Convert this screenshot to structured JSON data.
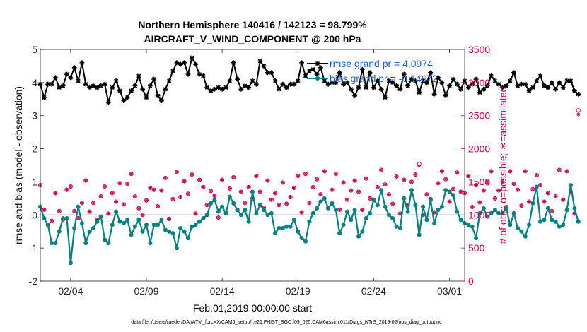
{
  "colors": {
    "rmse": "#000000",
    "bias": "#008080",
    "obs": "#cc0055",
    "legend_text": "#1f5fd6",
    "zero_line": "#aaaaaa"
  },
  "chart_data": {
    "type": "line",
    "title_line1": "Northern Hemisphere 140416 / 142123 = 98.799%",
    "title_line2": "AIRCRAFT_V_WIND_COMPONENT @ 200 hPa",
    "xlabel": "Feb.01,2019 00:00:00 start",
    "ylabel_left": "rmse and bias (model - observation)",
    "ylabel_right": "# of obs: o=possible; ∗=assimilated",
    "footnote": "data file: /Users/raeder/DAI/ATM_forcXX/CAM6_setup/f.e21.FHIST_BGC.f09_025.CAM6assim.011/Diags_NTrS_2019-02/obs_diag_output.nc",
    "xlim": [
      1,
      29
    ],
    "ylim_left": [
      -2,
      5
    ],
    "ylim_right": [
      0,
      3500
    ],
    "x_ticks": [
      3,
      8,
      13,
      18,
      23,
      28
    ],
    "x_tick_labels": [
      "02/04",
      "02/09",
      "02/14",
      "02/19",
      "02/24",
      "03/01"
    ],
    "y_ticks_left": [
      -2,
      -1,
      0,
      1,
      2,
      3,
      4,
      5
    ],
    "y_tick_labels_left": [
      "-2",
      "-1",
      "0",
      "1",
      "2",
      "3",
      "4",
      "5"
    ],
    "y_ticks_right": [
      0,
      500,
      1000,
      1500,
      2000,
      2500,
      3000,
      3500
    ],
    "y_tick_labels_right": [
      "0",
      "500",
      "1000",
      "1500",
      "2000",
      "2500",
      "3000",
      "3500"
    ],
    "legend": [
      {
        "name": "rmse grand pr = 4.0974"
      },
      {
        "name": "bias grand pr = -0.14672"
      }
    ],
    "series": [
      {
        "name": "rmse",
        "axis": "left",
        "x_start": 1.0,
        "x_step": 0.25,
        "values": [
          3.95,
          3.55,
          3.95,
          3.95,
          4.15,
          3.85,
          3.9,
          4.25,
          4.15,
          4.45,
          4.05,
          4.6,
          3.95,
          3.85,
          3.9,
          3.85,
          3.9,
          3.95,
          3.4,
          3.85,
          4.05,
          3.75,
          3.45,
          3.55,
          3.75,
          3.9,
          4.2,
          3.8,
          3.55,
          3.9,
          4.1,
          3.6,
          3.45,
          3.8,
          4.05,
          4.35,
          4.6,
          4.55,
          4.6,
          4.25,
          4.75,
          4.55,
          4.25,
          4.2,
          3.85,
          3.75,
          3.8,
          3.85,
          3.8,
          3.85,
          4.05,
          4.6,
          4.1,
          3.8,
          3.9,
          3.85,
          4.05,
          3.95,
          4.65,
          4.5,
          4.3,
          4.3,
          4.05,
          3.8,
          3.95,
          3.85,
          3.95,
          3.95,
          4.05,
          4.6,
          4.2,
          4.35,
          4.4,
          4.25,
          4.45,
          4.05,
          3.95,
          4.0,
          4.0,
          4.3,
          3.95,
          4.0,
          3.8,
          3.6,
          3.85,
          4.4,
          3.85,
          4.3,
          3.85,
          4.05,
          3.8,
          3.55,
          4.05,
          4.0,
          3.9,
          3.8,
          4.25,
          3.9,
          4.1,
          4.05,
          3.7,
          4.05,
          4.0,
          4.3,
          3.65,
          4.15,
          4.0,
          3.6,
          3.9,
          4.1,
          3.95,
          3.8,
          4.05,
          3.85,
          3.95,
          4.1,
          3.7,
          3.8,
          3.9,
          4.2,
          4.05,
          3.95,
          3.85,
          3.9,
          4.05,
          4.3,
          3.9,
          3.95,
          3.95,
          3.75,
          3.85,
          4.05,
          4.2,
          3.9,
          3.85,
          4.0,
          3.8,
          4.0,
          3.85,
          4.05,
          4.05,
          3.75,
          3.65
        ]
      },
      {
        "name": "bias",
        "axis": "left",
        "x_start": 1.0,
        "x_step": 0.25,
        "values": [
          0.25,
          -0.1,
          -0.3,
          -0.85,
          -0.85,
          -0.5,
          -0.1,
          -0.1,
          -1.45,
          -0.4,
          0.25,
          -0.25,
          -0.85,
          -0.5,
          -0.4,
          -0.2,
          -0.05,
          -0.75,
          -0.85,
          -0.3,
          0.1,
          -0.2,
          -0.25,
          -0.15,
          -0.6,
          -0.35,
          -0.15,
          -0.5,
          -0.3,
          -0.85,
          -0.3,
          -0.3,
          -0.15,
          -0.45,
          -0.5,
          -0.55,
          -1.0,
          -0.4,
          -0.5,
          -0.7,
          -0.35,
          -0.3,
          -0.2,
          -0.1,
          0.0,
          0.35,
          0.45,
          0.1,
          0.25,
          0.05,
          0.55,
          0.35,
          0.15,
          0.0,
          0.15,
          -0.2,
          0.7,
          0.05,
          0.3,
          0.15,
          0.0,
          0.05,
          -0.55,
          -0.4,
          -0.4,
          -0.35,
          -0.35,
          -0.15,
          -0.5,
          -0.7,
          -0.8,
          -0.2,
          0.05,
          0.2,
          0.4,
          0.5,
          0.2,
          0.35,
          0.15,
          -0.55,
          -0.3,
          0.1,
          -0.15,
          0.15,
          -0.65,
          -0.5,
          -0.1,
          0.05,
          0.45,
          0.3,
          0.75,
          0.25,
          0.0,
          -0.1,
          -0.35,
          -0.4,
          0.5,
          0.1,
          0.75,
          0.3,
          -0.6,
          0.25,
          -0.15,
          0.45,
          -0.25,
          0.15,
          0.25,
          0.75,
          0.7,
          0.6,
          0.1,
          -0.15,
          -0.25,
          -0.3,
          -0.35,
          -0.7,
          0.05,
          0.2,
          -0.05,
          0.05,
          0.15,
          0.05,
          0.05,
          0.2,
          -0.3,
          0.05,
          -0.4,
          -0.5,
          -0.65,
          -0.3,
          0.35,
          0.85,
          -0.2,
          -0.15,
          0.2,
          -0.15,
          -0.2,
          -0.35,
          -0.3,
          0.15,
          0.9,
          0.2,
          -0.2
        ]
      },
      {
        "name": "obs_possible",
        "axis": "right",
        "x_start": 1.0,
        "x_step": 0.25,
        "values": [
          1450,
          1080,
          850,
          910,
          1330,
          1060,
          930,
          1380,
          1430,
          1060,
          950,
          1180,
          1520,
          1050,
          1180,
          930,
          1280,
          1430,
          1020,
          1330,
          1200,
          1480,
          1160,
          1470,
          1620,
          1280,
          1100,
          1000,
          1220,
          1410,
          1380,
          1130,
          1370,
          1560,
          940,
          1240,
          1650,
          1270,
          1510,
          1320,
          1610,
          1020,
          1530,
          1420,
          1150,
          1360,
          1290,
          960,
          1530,
          1030,
          1400,
          1570,
          1080,
          1350,
          1180,
          1420,
          1250,
          1590,
          1350,
          1110,
          1520,
          1230,
          1330,
          1150,
          1490,
          1170,
          1270,
          1410,
          1590,
          1040,
          1620,
          1180,
          1420,
          1540,
          1310,
          1660,
          1110,
          1380,
          1620,
          1080,
          1490,
          1230,
          1370,
          1520,
          1350,
          1080,
          1550,
          1250,
          1230,
          1420,
          1680,
          1460,
          1310,
          1170,
          1580,
          1020,
          1530,
          1150,
          1500,
          1610,
          1770,
          1000,
          1310,
          1240,
          1040,
          1480,
          1660,
          1540,
          1200,
          1390,
          1640,
          1350,
          1330,
          1590,
          1120,
          1450,
          1190,
          1370,
          1500,
          1660,
          1250,
          1370,
          1500,
          1120,
          1660,
          1470,
          1380,
          1140,
          1660,
          1200,
          1390,
          1600,
          1450,
          1200,
          1330,
          1060,
          1280,
          1680,
          1230,
          1660,
          1340,
          1020,
          2580
        ]
      },
      {
        "name": "obs_assimilated",
        "axis": "right",
        "x_start": 1.0,
        "x_step": 0.25,
        "values": [
          1450,
          1080,
          850,
          910,
          1330,
          1060,
          930,
          1380,
          1430,
          1060,
          950,
          1180,
          1520,
          1050,
          1180,
          930,
          1280,
          1430,
          1020,
          1330,
          1200,
          1480,
          1160,
          1470,
          1620,
          1280,
          1100,
          1000,
          1220,
          1410,
          1380,
          1130,
          1370,
          1560,
          940,
          1240,
          1650,
          1270,
          1510,
          1320,
          1610,
          1020,
          1530,
          1420,
          1150,
          1360,
          1290,
          960,
          1530,
          1030,
          1400,
          1570,
          1080,
          1350,
          1180,
          1420,
          1250,
          1590,
          1350,
          1110,
          1520,
          1230,
          1330,
          1150,
          1490,
          1170,
          1270,
          1410,
          1590,
          1040,
          1620,
          1180,
          1420,
          1540,
          1310,
          1660,
          1110,
          1380,
          1620,
          1080,
          1490,
          1230,
          1370,
          1520,
          1350,
          1080,
          1550,
          1250,
          1230,
          1420,
          1680,
          1460,
          1310,
          1170,
          1580,
          1020,
          1530,
          1150,
          1500,
          1610,
          1740,
          1000,
          1310,
          1240,
          1040,
          1480,
          1660,
          1540,
          1200,
          1390,
          1640,
          1350,
          1330,
          1590,
          1120,
          1450,
          1190,
          1370,
          1500,
          1660,
          1250,
          1370,
          1500,
          1120,
          1660,
          1470,
          1380,
          1140,
          1660,
          1200,
          1390,
          1600,
          1450,
          1200,
          1330,
          1060,
          1280,
          1680,
          1230,
          1660,
          1340,
          1020,
          2520
        ]
      }
    ]
  }
}
